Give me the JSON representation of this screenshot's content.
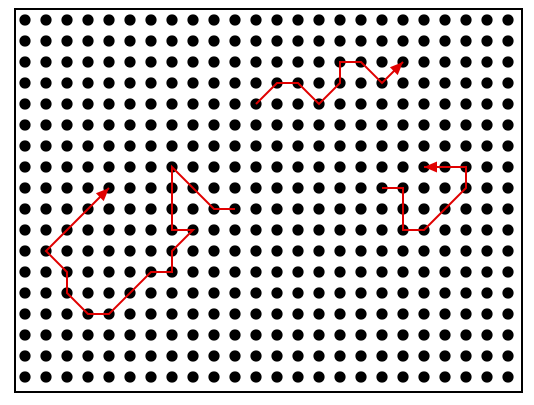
{
  "colors": {
    "background": "#ffffff",
    "border": "#000000",
    "dot": "#000000",
    "path": "#e00000"
  },
  "grid": {
    "columns": 24,
    "rows": 18
  },
  "paths": [
    {
      "points": [
        [
          11,
          4
        ],
        [
          12,
          3
        ],
        [
          13,
          3
        ],
        [
          14,
          4
        ],
        [
          15,
          3
        ],
        [
          15,
          2
        ],
        [
          16,
          2
        ],
        [
          17,
          3
        ],
        [
          18,
          2
        ]
      ],
      "arrow_end": true
    },
    {
      "points": [
        [
          10,
          9
        ],
        [
          9,
          9
        ],
        [
          7,
          7
        ],
        [
          7,
          10
        ],
        [
          8,
          10
        ],
        [
          7,
          11
        ],
        [
          7,
          12
        ],
        [
          6,
          12
        ],
        [
          4,
          14
        ],
        [
          3,
          14
        ],
        [
          2,
          13
        ],
        [
          2,
          12
        ],
        [
          1,
          11
        ],
        [
          2,
          10
        ],
        [
          3,
          9
        ],
        [
          4,
          8
        ]
      ],
      "arrow_end": true
    },
    {
      "points": [
        [
          17,
          8
        ],
        [
          18,
          8
        ],
        [
          18,
          10
        ],
        [
          19,
          10
        ],
        [
          20,
          9
        ],
        [
          21,
          8
        ],
        [
          21,
          7
        ],
        [
          19,
          7
        ]
      ],
      "arrow_end": true
    }
  ]
}
